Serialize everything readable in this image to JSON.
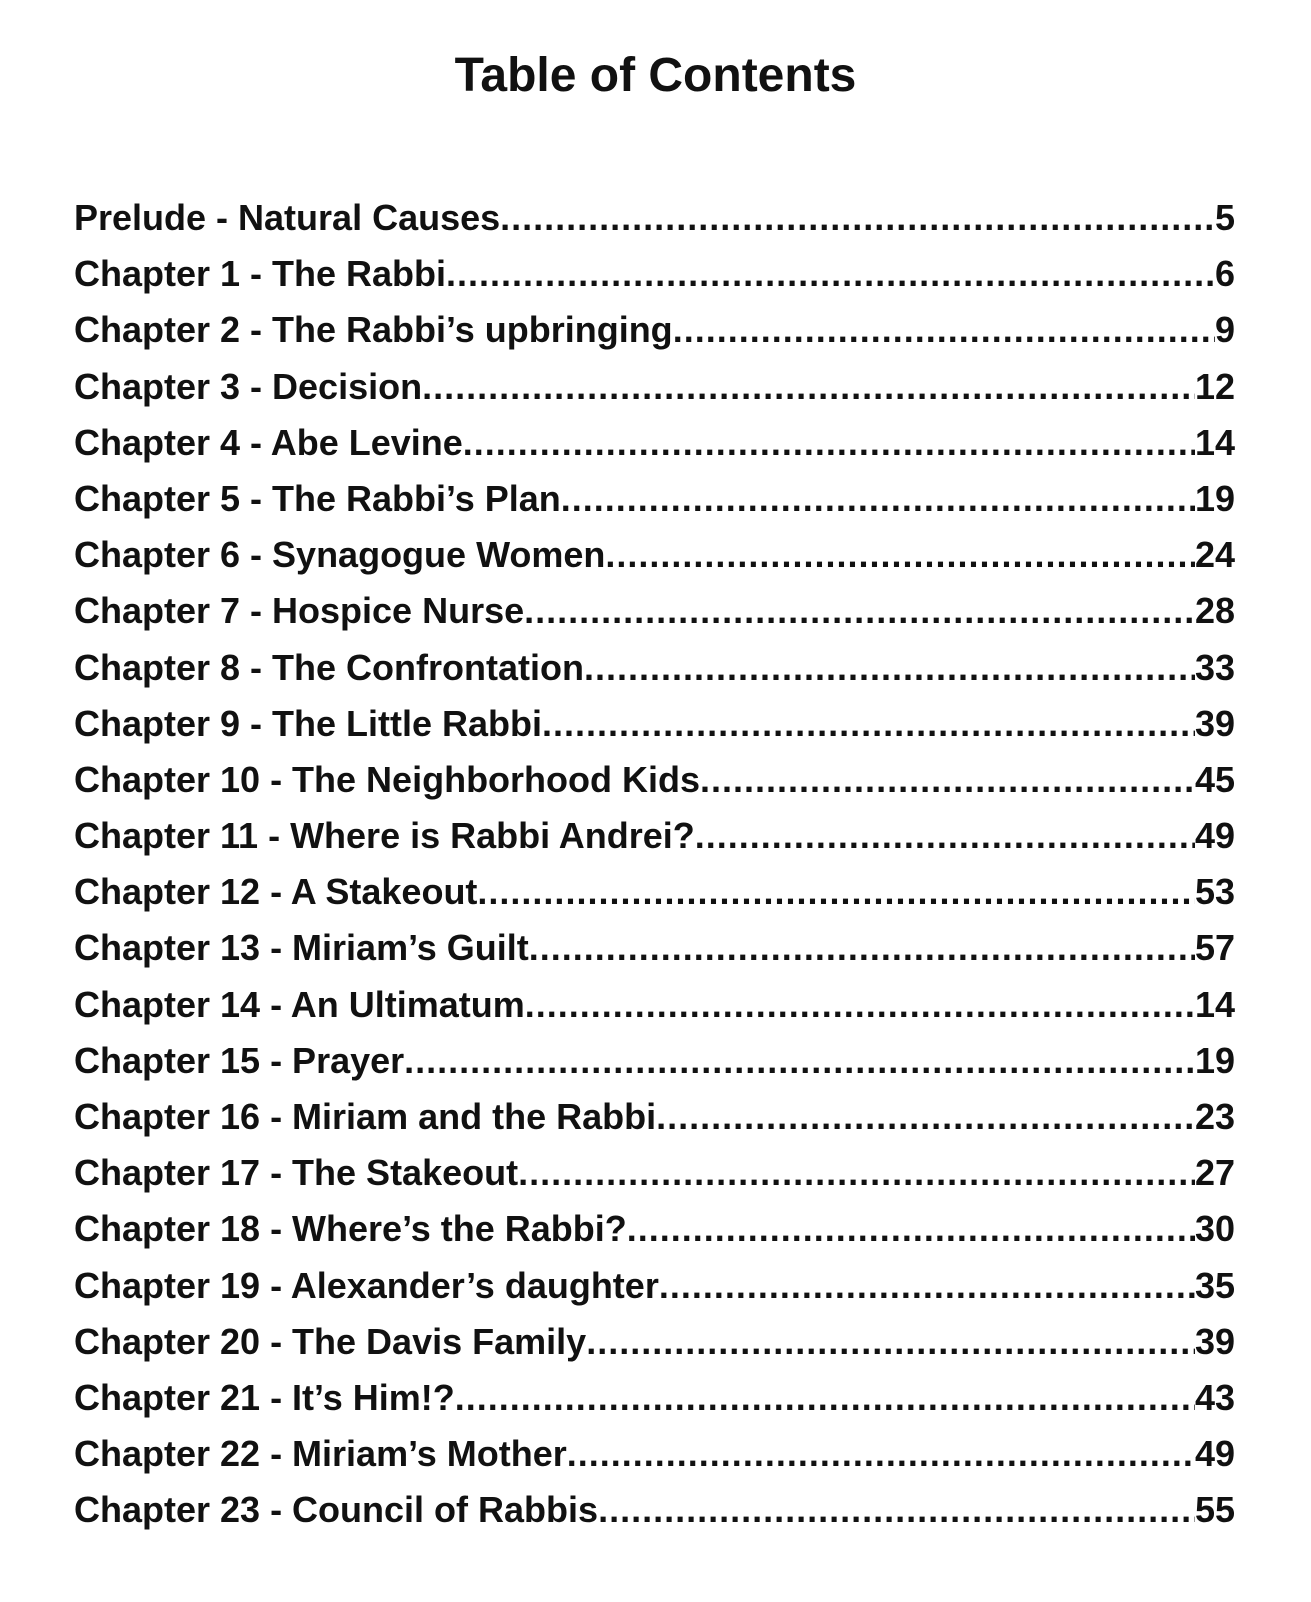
{
  "title": "Table of Contents",
  "entries": [
    {
      "label": "Prelude - Natural Causes",
      "page": "5"
    },
    {
      "label": "Chapter 1 - The Rabbi",
      "page": "6"
    },
    {
      "label": "Chapter 2 - The Rabbi’s upbringing",
      "page": "9"
    },
    {
      "label": "Chapter 3 - Decision",
      "page": "12"
    },
    {
      "label": "Chapter 4 - Abe Levine",
      "page": "14"
    },
    {
      "label": "Chapter 5 - The Rabbi’s Plan",
      "page": "19"
    },
    {
      "label": "Chapter 6 - Synagogue Women",
      "page": "24"
    },
    {
      "label": "Chapter 7 - Hospice Nurse",
      "page": "28"
    },
    {
      "label": "Chapter 8 - The Confrontation",
      "page": "33"
    },
    {
      "label": "Chapter 9 - The Little Rabbi",
      "page": "39"
    },
    {
      "label": "Chapter 10 - The Neighborhood Kids",
      "page": "45"
    },
    {
      "label": "Chapter 11 - Where is Rabbi Andrei?",
      "page": "49"
    },
    {
      "label": "Chapter 12 - A Stakeout",
      "page": "53"
    },
    {
      "label": "Chapter 13 - Miriam’s Guilt",
      "page": "57"
    },
    {
      "label": "Chapter 14 - An Ultimatum",
      "page": "14"
    },
    {
      "label": "Chapter 15 - Prayer",
      "page": "19"
    },
    {
      "label": "Chapter 16 - Miriam and the Rabbi",
      "page": "23"
    },
    {
      "label": "Chapter 17 - The Stakeout",
      "page": "27"
    },
    {
      "label": "Chapter 18 - Where’s the Rabbi?",
      "page": "30"
    },
    {
      "label": "Chapter 19 - Alexander’s daughter",
      "page": "35"
    },
    {
      "label": "Chapter 20 - The Davis Family",
      "page": "39"
    },
    {
      "label": "Chapter 21 - It’s Him!?",
      "page": "43"
    },
    {
      "label": "Chapter 22 - Miriam’s Mother",
      "page": "49"
    },
    {
      "label": "Chapter 23 - Council of Rabbis",
      "page": "55"
    }
  ]
}
